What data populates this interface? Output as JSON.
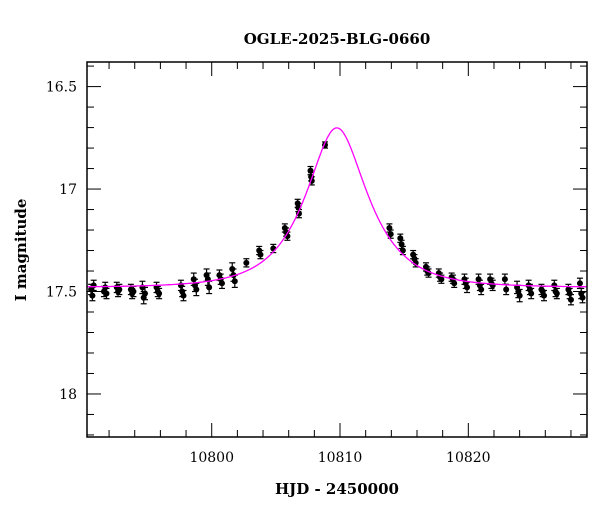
{
  "chart_data": {
    "type": "scatter",
    "title": "OGLE-2025-BLG-0660",
    "xlabel": "HJD - 2450000",
    "ylabel": "I magnitude",
    "xlim": [
      10790.28,
      10829.25
    ],
    "ylim": [
      18.21,
      16.38
    ],
    "y_inverted": true,
    "x_major_ticks": [
      10800,
      10810,
      10820
    ],
    "x_tick_labels": [
      "10800",
      "10810",
      "10820"
    ],
    "x_minor_step": 2,
    "y_major_ticks": [
      16.5,
      17,
      17.5,
      18
    ],
    "y_tick_labels": [
      "16.5",
      "17",
      "17.5",
      "18"
    ],
    "y_minor_step": 0.1,
    "grid": false,
    "colors": {
      "points": "#000000",
      "model": "#ff00ff"
    },
    "model": {
      "kind": "Paczynski point-lens fit",
      "t0": 10809.75,
      "tE": 4.0,
      "u0": 0.54,
      "baseline_mag": 17.48
    },
    "points": [
      [
        10790.6,
        17.49,
        0.025
      ],
      [
        10790.7,
        17.52,
        0.025
      ],
      [
        10790.8,
        17.47,
        0.025
      ],
      [
        10791.6,
        17.5,
        0.025
      ],
      [
        10791.7,
        17.48,
        0.025
      ],
      [
        10791.8,
        17.51,
        0.025
      ],
      [
        10792.6,
        17.48,
        0.025
      ],
      [
        10792.7,
        17.5,
        0.025
      ],
      [
        10792.8,
        17.49,
        0.025
      ],
      [
        10793.7,
        17.49,
        0.025
      ],
      [
        10793.8,
        17.51,
        0.025
      ],
      [
        10793.9,
        17.5,
        0.025
      ],
      [
        10794.6,
        17.48,
        0.03
      ],
      [
        10794.7,
        17.53,
        0.03
      ],
      [
        10794.8,
        17.51,
        0.03
      ],
      [
        10795.7,
        17.48,
        0.025
      ],
      [
        10795.8,
        17.5,
        0.025
      ],
      [
        10795.9,
        17.51,
        0.025
      ],
      [
        10797.6,
        17.47,
        0.025
      ],
      [
        10797.7,
        17.5,
        0.025
      ],
      [
        10797.8,
        17.52,
        0.025
      ],
      [
        10798.6,
        17.44,
        0.03
      ],
      [
        10798.7,
        17.47,
        0.03
      ],
      [
        10798.8,
        17.49,
        0.03
      ],
      [
        10799.6,
        17.42,
        0.03
      ],
      [
        10799.7,
        17.44,
        0.03
      ],
      [
        10799.8,
        17.48,
        0.03
      ],
      [
        10800.6,
        17.42,
        0.025
      ],
      [
        10800.7,
        17.44,
        0.025
      ],
      [
        10800.8,
        17.46,
        0.025
      ],
      [
        10801.6,
        17.39,
        0.03
      ],
      [
        10801.7,
        17.42,
        0.03
      ],
      [
        10801.8,
        17.45,
        0.03
      ],
      [
        10802.7,
        17.36,
        0.02
      ],
      [
        10803.7,
        17.3,
        0.02
      ],
      [
        10803.8,
        17.32,
        0.02
      ],
      [
        10804.8,
        17.29,
        0.02
      ],
      [
        10805.7,
        17.19,
        0.02
      ],
      [
        10805.8,
        17.21,
        0.02
      ],
      [
        10805.9,
        17.23,
        0.02
      ],
      [
        10806.7,
        17.07,
        0.02
      ],
      [
        10806.75,
        17.09,
        0.02
      ],
      [
        10806.8,
        17.12,
        0.02
      ],
      [
        10807.7,
        16.91,
        0.02
      ],
      [
        10807.75,
        16.94,
        0.02
      ],
      [
        10807.8,
        16.96,
        0.02
      ],
      [
        10808.83,
        16.785,
        0.015
      ],
      [
        10813.85,
        17.19,
        0.02
      ],
      [
        10813.95,
        17.22,
        0.02
      ],
      [
        10814.7,
        17.24,
        0.02
      ],
      [
        10814.8,
        17.27,
        0.02
      ],
      [
        10814.9,
        17.3,
        0.02
      ],
      [
        10815.7,
        17.32,
        0.02
      ],
      [
        10815.8,
        17.34,
        0.02
      ],
      [
        10815.9,
        17.36,
        0.02
      ],
      [
        10816.7,
        17.38,
        0.02
      ],
      [
        10816.8,
        17.4,
        0.02
      ],
      [
        10816.9,
        17.41,
        0.02
      ],
      [
        10817.7,
        17.41,
        0.02
      ],
      [
        10817.8,
        17.43,
        0.02
      ],
      [
        10817.9,
        17.44,
        0.02
      ],
      [
        10818.7,
        17.43,
        0.02
      ],
      [
        10818.8,
        17.44,
        0.02
      ],
      [
        10818.9,
        17.46,
        0.02
      ],
      [
        10819.7,
        17.44,
        0.025
      ],
      [
        10819.8,
        17.46,
        0.025
      ],
      [
        10819.9,
        17.48,
        0.025
      ],
      [
        10820.8,
        17.44,
        0.025
      ],
      [
        10820.9,
        17.47,
        0.025
      ],
      [
        10821.0,
        17.49,
        0.025
      ],
      [
        10821.7,
        17.44,
        0.025
      ],
      [
        10821.8,
        17.46,
        0.025
      ],
      [
        10821.9,
        17.47,
        0.025
      ],
      [
        10822.85,
        17.44,
        0.025
      ],
      [
        10822.95,
        17.49,
        0.025
      ],
      [
        10823.8,
        17.48,
        0.03
      ],
      [
        10823.9,
        17.5,
        0.03
      ],
      [
        10824.0,
        17.52,
        0.03
      ],
      [
        10824.7,
        17.47,
        0.025
      ],
      [
        10824.8,
        17.49,
        0.025
      ],
      [
        10824.9,
        17.51,
        0.025
      ],
      [
        10825.7,
        17.49,
        0.025
      ],
      [
        10825.8,
        17.5,
        0.025
      ],
      [
        10825.9,
        17.52,
        0.025
      ],
      [
        10826.7,
        17.47,
        0.025
      ],
      [
        10826.8,
        17.5,
        0.025
      ],
      [
        10826.9,
        17.51,
        0.025
      ],
      [
        10827.8,
        17.49,
        0.025
      ],
      [
        10827.9,
        17.51,
        0.025
      ],
      [
        10828.0,
        17.54,
        0.025
      ],
      [
        10828.7,
        17.46,
        0.025
      ],
      [
        10828.8,
        17.51,
        0.025
      ],
      [
        10828.9,
        17.53,
        0.025
      ]
    ]
  }
}
